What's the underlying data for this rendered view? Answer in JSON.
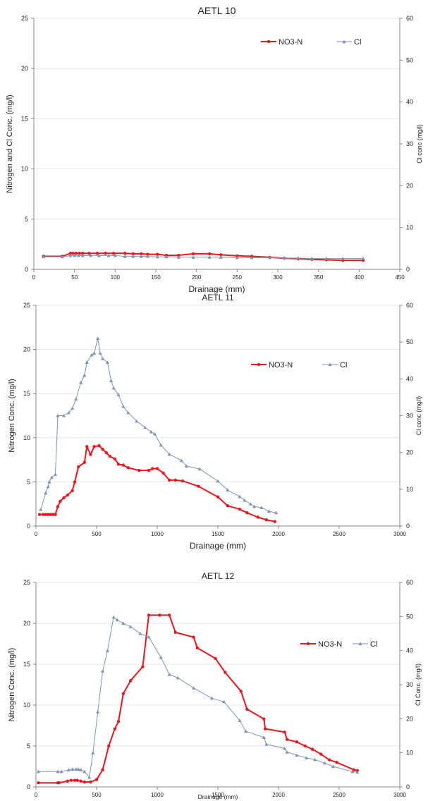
{
  "colors": {
    "no3n": "#e8161e",
    "cl": "#7f95b3",
    "axis": "#888888",
    "grid": "#e6e6e6"
  },
  "chart_data": [
    {
      "type": "line",
      "title": "AETL 10",
      "xlabel": "Drainage (mm)",
      "ylabel": "Nitrogen and Cl Conc.  (mg/l)",
      "y2label": "Cl conc (mg/l)",
      "xlim": [
        0,
        450
      ],
      "xticks": [
        0,
        50,
        100,
        150,
        200,
        250,
        300,
        350,
        400,
        450
      ],
      "ylim": [
        0,
        25
      ],
      "yticks": [
        0,
        5,
        10,
        15,
        20,
        25
      ],
      "y2lim": [
        0,
        60
      ],
      "y2ticks": [
        0,
        10,
        20,
        30,
        40,
        50,
        60
      ],
      "legend": "top-right",
      "series": [
        {
          "name": "NO3-N",
          "axis": "left",
          "marker": "circle",
          "x": [
            12,
            35,
            45,
            48,
            52,
            56,
            60,
            68,
            78,
            88,
            98,
            112,
            122,
            132,
            140,
            152,
            163,
            178,
            196,
            216,
            230,
            250,
            268,
            290,
            308,
            325,
            342,
            360,
            380,
            405
          ],
          "y": [
            1.3,
            1.3,
            1.6,
            1.6,
            1.6,
            1.6,
            1.6,
            1.6,
            1.6,
            1.6,
            1.6,
            1.6,
            1.55,
            1.55,
            1.5,
            1.5,
            1.4,
            1.4,
            1.55,
            1.55,
            1.45,
            1.35,
            1.3,
            1.2,
            1.1,
            1.05,
            1.0,
            0.95,
            0.9,
            0.9
          ]
        },
        {
          "name": "Cl",
          "axis": "right",
          "marker": "triangle",
          "x": [
            12,
            35,
            45,
            50,
            55,
            60,
            70,
            80,
            92,
            100,
            112,
            122,
            132,
            140,
            152,
            163,
            178,
            196,
            216,
            230,
            250,
            268,
            290,
            308,
            325,
            342,
            360,
            380,
            405
          ],
          "y": [
            3.0,
            3.0,
            3.3,
            3.3,
            3.3,
            3.3,
            3.3,
            3.3,
            3.3,
            3.3,
            3.1,
            3.1,
            3.1,
            3.1,
            3.0,
            3.0,
            2.9,
            2.9,
            2.9,
            2.9,
            2.8,
            2.8,
            2.8,
            2.7,
            2.7,
            2.6,
            2.6,
            2.6,
            2.6
          ]
        }
      ]
    },
    {
      "type": "line",
      "title": "AETL 11",
      "xlabel": "Drainage  (mm)",
      "ylabel": "Nitrogen Conc.  (mg/l)",
      "y2label": "Cl conc  (mg/l)",
      "xlim": [
        0,
        3000
      ],
      "xticks": [
        0,
        500,
        1000,
        1500,
        2000,
        2500,
        3000
      ],
      "ylim": [
        0,
        25
      ],
      "yticks": [
        0,
        5,
        10,
        15,
        20,
        25
      ],
      "y2lim": [
        0,
        60
      ],
      "y2ticks": [
        0,
        10,
        20,
        30,
        40,
        50,
        60
      ],
      "legend": "top-right",
      "series": [
        {
          "name": "NO3-N",
          "axis": "left",
          "marker": "circle",
          "x": [
            30,
            60,
            80,
            100,
            120,
            140,
            160,
            180,
            200,
            230,
            260,
            300,
            320,
            350,
            400,
            420,
            450,
            480,
            520,
            550,
            580,
            610,
            650,
            680,
            720,
            760,
            850,
            930,
            960,
            1000,
            1050,
            1100,
            1150,
            1210,
            1340,
            1500,
            1580,
            1680,
            1740,
            1830,
            1900,
            1970
          ],
          "y": [
            1.3,
            1.3,
            1.3,
            1.3,
            1.3,
            1.3,
            1.3,
            2.2,
            2.8,
            3.2,
            3.5,
            4.0,
            5.0,
            6.7,
            7.2,
            9.0,
            8.1,
            9.0,
            9.1,
            8.7,
            8.3,
            7.9,
            7.6,
            7.0,
            6.9,
            6.6,
            6.3,
            6.3,
            6.5,
            6.5,
            6.0,
            5.2,
            5.2,
            5.1,
            4.5,
            3.3,
            2.3,
            1.9,
            1.5,
            1.0,
            0.7,
            0.5
          ]
        },
        {
          "name": "Cl",
          "axis": "right",
          "marker": "triangle",
          "x": [
            40,
            80,
            100,
            110,
            130,
            160,
            180,
            230,
            270,
            300,
            330,
            370,
            400,
            420,
            460,
            480,
            510,
            530,
            550,
            590,
            620,
            640,
            680,
            720,
            760,
            830,
            900,
            950,
            980,
            1030,
            1100,
            1200,
            1240,
            1350,
            1500,
            1580,
            1680,
            1720,
            1770,
            1800,
            1860,
            1920,
            1980
          ],
          "y": [
            4.5,
            9.0,
            10.7,
            12.0,
            13.2,
            14.0,
            30.0,
            30.0,
            30.8,
            32.0,
            34.5,
            39.0,
            41.0,
            44.5,
            46.5,
            47.0,
            51.0,
            47.0,
            45.5,
            44.5,
            39.5,
            37.5,
            35.7,
            32.5,
            30.8,
            28.5,
            26.8,
            25.6,
            25.0,
            22.0,
            19.5,
            17.8,
            16.3,
            15.5,
            12.2,
            9.8,
            8.0,
            7.0,
            6.0,
            5.3,
            5.0,
            4.0,
            3.6
          ]
        }
      ]
    },
    {
      "type": "line",
      "title": "AETL 12",
      "xlabel": "Drainage (mm)",
      "ylabel": "Nitrogen Conc.  (mg/l)",
      "y2label": "Cl Conc. (mg/l)",
      "xlim": [
        0,
        3000
      ],
      "xticks": [
        0,
        500,
        1000,
        1500,
        2000,
        2500,
        3000
      ],
      "ylim": [
        0,
        25
      ],
      "yticks": [
        0,
        5,
        10,
        15,
        20,
        25
      ],
      "y2lim": [
        0,
        60
      ],
      "y2ticks": [
        0,
        10,
        20,
        30,
        40,
        50,
        60
      ],
      "legend": "top-right",
      "series": [
        {
          "name": "NO3-N",
          "axis": "left",
          "marker": "circle",
          "x": [
            20,
            180,
            190,
            260,
            290,
            320,
            340,
            370,
            400,
            450,
            500,
            550,
            600,
            650,
            680,
            720,
            780,
            880,
            930,
            1020,
            1100,
            1150,
            1300,
            1330,
            1480,
            1560,
            1690,
            1740,
            1880,
            1890,
            2050,
            2070,
            2150,
            2220,
            2280,
            2350,
            2420,
            2480,
            2620,
            2650
          ],
          "y": [
            0.5,
            0.5,
            0.5,
            0.7,
            0.8,
            0.8,
            0.8,
            0.7,
            0.6,
            0.6,
            0.9,
            2.1,
            5.0,
            7.1,
            8.0,
            11.4,
            13.0,
            14.7,
            21.0,
            21.0,
            21.0,
            18.9,
            18.3,
            17.0,
            15.7,
            14.0,
            11.7,
            9.5,
            8.3,
            7.1,
            6.7,
            5.8,
            5.5,
            5.0,
            4.6,
            4.0,
            3.3,
            3.0,
            2.1,
            2.0
          ]
        },
        {
          "name": "Cl",
          "axis": "right",
          "marker": "triangle",
          "x": [
            20,
            180,
            210,
            270,
            300,
            330,
            350,
            370,
            400,
            440,
            470,
            510,
            550,
            590,
            640,
            670,
            720,
            780,
            860,
            930,
            1030,
            1100,
            1170,
            1300,
            1450,
            1550,
            1680,
            1730,
            1880,
            1900,
            2050,
            2070,
            2150,
            2230,
            2300,
            2380,
            2450,
            2610,
            2650
          ],
          "y": [
            4.5,
            4.5,
            4.5,
            5.0,
            5.2,
            5.2,
            5.2,
            5.0,
            4.5,
            2.8,
            10.0,
            22.0,
            34.0,
            40.0,
            49.8,
            49.0,
            48.0,
            47.0,
            45.0,
            44.0,
            38.0,
            33.0,
            32.0,
            29.0,
            26.0,
            25.0,
            19.5,
            16.3,
            14.5,
            12.5,
            11.3,
            10.2,
            9.3,
            8.5,
            8.0,
            7.0,
            6.0,
            4.5,
            4.3
          ]
        }
      ]
    }
  ]
}
